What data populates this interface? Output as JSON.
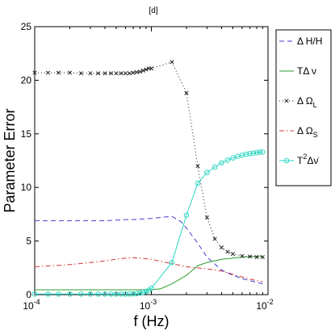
{
  "chart_data": {
    "type": "line",
    "title": "[d]",
    "xlabel": "f (Hz)",
    "ylabel": "Parameter Error",
    "xscale": "log",
    "xlim": [
      0.0001,
      0.01
    ],
    "ylim": [
      0,
      25
    ],
    "yticks": [
      0,
      5,
      10,
      15,
      20,
      25
    ],
    "xticks": [
      {
        "value": 0.0001,
        "base": "10",
        "exp": "-4"
      },
      {
        "value": 0.001,
        "base": "10",
        "exp": "-3"
      },
      {
        "value": 0.01,
        "base": "10",
        "exp": "-2"
      }
    ],
    "legend_position": "right",
    "series": [
      {
        "name": "Δ H/H",
        "label": [
          {
            "t": "Δ H/H",
            "sup": false,
            "sub": false
          }
        ],
        "color": "#3b3bd6",
        "dash": "6,4",
        "marker": "none",
        "x": [
          0.0001,
          0.0002,
          0.0003,
          0.0004,
          0.0005,
          0.0006,
          0.0007,
          0.0008,
          0.001,
          0.0012,
          0.0015,
          0.0018,
          0.002,
          0.0025,
          0.003,
          0.004,
          0.005,
          0.006,
          0.007,
          0.008,
          0.009
        ],
        "y": [
          6.9,
          6.9,
          6.9,
          6.9,
          6.95,
          7.0,
          7.0,
          7.05,
          7.1,
          7.2,
          7.3,
          6.8,
          6.2,
          4.8,
          3.5,
          2.3,
          1.8,
          1.5,
          1.3,
          1.15,
          1.0
        ]
      },
      {
        "name": "TΔ ν",
        "label": [
          {
            "t": "TΔ ν",
            "sup": false,
            "sub": false
          }
        ],
        "color": "#2e9e2e",
        "dash": "",
        "marker": "none",
        "x": [
          0.0001,
          0.0002,
          0.0004,
          0.0006,
          0.0008,
          0.001,
          0.0012,
          0.0015,
          0.002,
          0.0025,
          0.003,
          0.004,
          0.005,
          0.006,
          0.007,
          0.008,
          0.009
        ],
        "y": [
          0.45,
          0.45,
          0.45,
          0.45,
          0.45,
          0.45,
          0.55,
          1.0,
          1.8,
          2.7,
          3.0,
          3.3,
          3.4,
          3.5,
          3.55,
          3.6,
          3.6
        ]
      },
      {
        "name": "Δ Ω_L",
        "label": [
          {
            "t": "Δ Ω",
            "sup": false,
            "sub": false
          },
          {
            "t": "L",
            "sup": false,
            "sub": true
          }
        ],
        "color": "#222222",
        "dash": "1,3",
        "marker": "x",
        "x": [
          0.0001,
          0.00013,
          0.00016,
          0.0002,
          0.00025,
          0.0003,
          0.00035,
          0.0004,
          0.00045,
          0.0005,
          0.00055,
          0.0006,
          0.00065,
          0.0007,
          0.00075,
          0.0008,
          0.00085,
          0.0009,
          0.00095,
          0.001,
          0.0015,
          0.002,
          0.0025,
          0.003,
          0.0035,
          0.004,
          0.0045,
          0.005,
          0.006,
          0.007,
          0.008,
          0.009
        ],
        "y": [
          20.7,
          20.7,
          20.7,
          20.7,
          20.65,
          20.65,
          20.65,
          20.65,
          20.65,
          20.65,
          20.65,
          20.65,
          20.65,
          20.7,
          20.75,
          20.8,
          20.9,
          21.0,
          21.1,
          21.1,
          21.7,
          18.8,
          12.0,
          7.2,
          5.2,
          4.4,
          4.0,
          3.8,
          3.6,
          3.55,
          3.5,
          3.5
        ]
      },
      {
        "name": "Δ Ω_S",
        "label": [
          {
            "t": "Δ Ω",
            "sup": false,
            "sub": false
          },
          {
            "t": "S",
            "sup": false,
            "sub": true
          }
        ],
        "color": "#d43333",
        "dash": "6,3,1.5,3",
        "marker": "none",
        "x": [
          0.0001,
          0.0002,
          0.0003,
          0.0004,
          0.0005,
          0.0006,
          0.0007,
          0.0008,
          0.001,
          0.0012,
          0.0015,
          0.002,
          0.003,
          0.004,
          0.005,
          0.006,
          0.007,
          0.008,
          0.009
        ],
        "y": [
          2.6,
          2.8,
          3.0,
          3.15,
          3.3,
          3.4,
          3.45,
          3.4,
          3.3,
          3.1,
          2.9,
          2.6,
          2.4,
          2.2,
          1.9,
          1.65,
          1.45,
          1.3,
          1.2
        ]
      },
      {
        "name": "T²Δν̇",
        "label": [
          {
            "t": "T",
            "sup": false,
            "sub": false
          },
          {
            "t": "2",
            "sup": true,
            "sub": false
          },
          {
            "t": "Δν̇",
            "sup": false,
            "sub": false
          }
        ],
        "color": "#2fd6c2",
        "dash": "",
        "marker": "o",
        "x": [
          0.0001,
          0.00013,
          0.00016,
          0.0002,
          0.00025,
          0.0003,
          0.00035,
          0.0004,
          0.00045,
          0.0005,
          0.00055,
          0.0006,
          0.00065,
          0.0007,
          0.00075,
          0.0008,
          0.00085,
          0.0009,
          0.00095,
          0.001,
          0.0015,
          0.002,
          0.0025,
          0.003,
          0.0035,
          0.004,
          0.0045,
          0.005,
          0.0055,
          0.006,
          0.0065,
          0.007,
          0.0075,
          0.008,
          0.0085,
          0.009
        ],
        "y": [
          0.05,
          0.05,
          0.05,
          0.05,
          0.05,
          0.05,
          0.05,
          0.05,
          0.05,
          0.05,
          0.05,
          0.05,
          0.06,
          0.07,
          0.1,
          0.15,
          0.22,
          0.3,
          0.4,
          0.6,
          3.0,
          7.4,
          10.4,
          11.4,
          11.9,
          12.3,
          12.55,
          12.75,
          12.9,
          13.0,
          13.1,
          13.15,
          13.2,
          13.25,
          13.3,
          13.3
        ]
      }
    ]
  }
}
